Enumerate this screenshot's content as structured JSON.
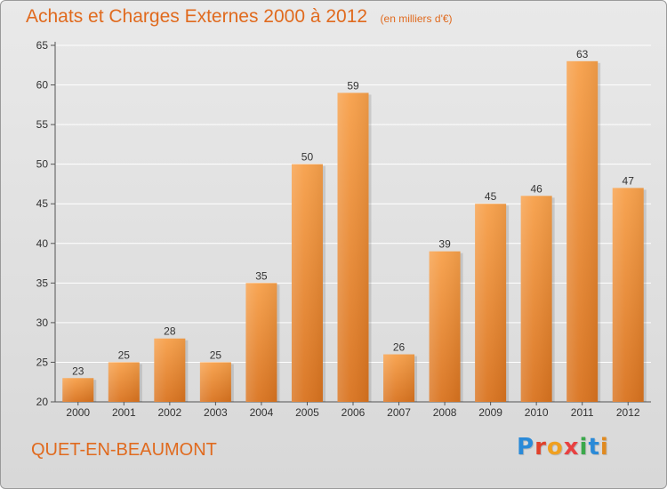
{
  "header": {
    "title": "Achats et Charges Externes 2000 à 2012",
    "subtitle": "(en milliers d'€)"
  },
  "footer": {
    "commune": "QUET-EN-BEAUMONT",
    "logo_letters": [
      "P",
      "r",
      "o",
      "x",
      "i",
      "t",
      "i"
    ]
  },
  "colors": {
    "accent": "#e06a1e",
    "bar_top": "#f7a04a",
    "bar_bottom": "#d9731f",
    "grid": "#ffffff",
    "axis": "#555555"
  },
  "chart_data": {
    "type": "bar",
    "title": "Achats et Charges Externes 2000 à 2012",
    "subtitle": "(en milliers d'€)",
    "xlabel": "",
    "ylabel": "",
    "categories": [
      "2000",
      "2001",
      "2002",
      "2003",
      "2004",
      "2005",
      "2006",
      "2007",
      "2008",
      "2009",
      "2010",
      "2011",
      "2012"
    ],
    "values": [
      23,
      25,
      28,
      25,
      35,
      50,
      59,
      26,
      39,
      45,
      46,
      63,
      47
    ],
    "ylim": [
      20,
      65
    ],
    "yticks": [
      20,
      25,
      30,
      35,
      40,
      45,
      50,
      55,
      60,
      65
    ],
    "grid": true,
    "legend": "none"
  }
}
